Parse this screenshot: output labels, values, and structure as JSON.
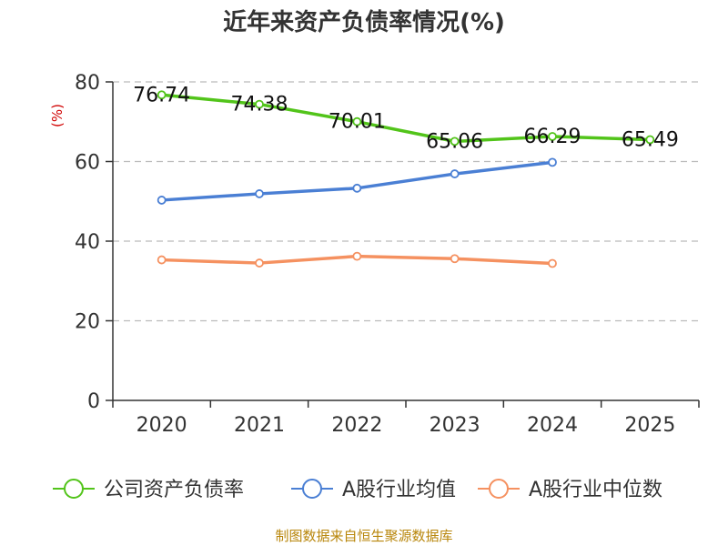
{
  "chart_data": {
    "type": "line",
    "title": "近年来资产负债率情况(%)",
    "xlabel": "",
    "ylabel": "(%)",
    "ylim": [
      0,
      80
    ],
    "yticks": [
      0,
      20,
      40,
      60,
      80
    ],
    "categories": [
      "2020",
      "2021",
      "2022",
      "2023",
      "2024",
      "2025"
    ],
    "series": [
      {
        "name": "公司资产负债率",
        "color": "#52c41a",
        "values": [
          76.74,
          74.38,
          70.01,
          65.06,
          66.29,
          65.49
        ],
        "labels": [
          "76.74",
          "74.38",
          "70.01",
          "65.06",
          "66.29",
          "65.49"
        ]
      },
      {
        "name": "A股行业均值",
        "color": "#4a7fd4",
        "values": [
          50.3,
          51.9,
          53.3,
          56.9,
          59.8,
          null
        ]
      },
      {
        "name": "A股行业中位数",
        "color": "#f59160",
        "values": [
          35.3,
          34.5,
          36.2,
          35.6,
          34.4,
          null
        ]
      }
    ],
    "grid": true,
    "legend_position": "bottom"
  },
  "source": "制图数据来自恒生聚源数据库"
}
